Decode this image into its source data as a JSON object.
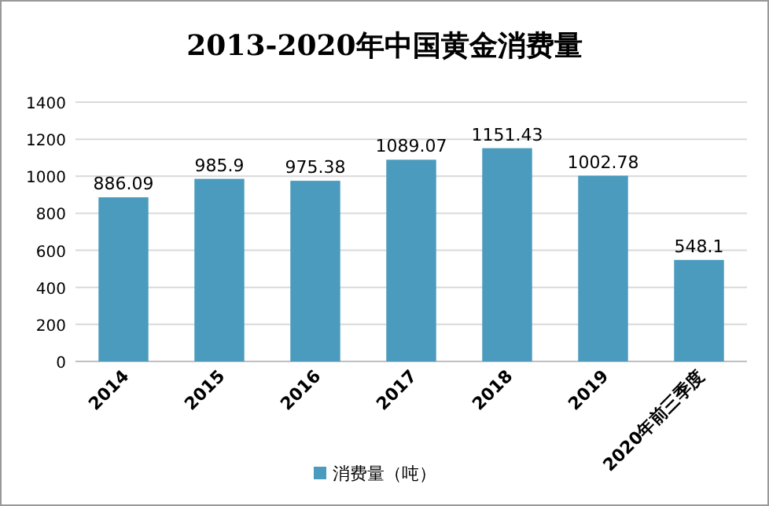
{
  "chart_data": {
    "type": "bar",
    "title": "2013-2020年中国黄金消费量",
    "categories": [
      "2014",
      "2015",
      "2016",
      "2017",
      "2018",
      "2019",
      "2020年前三季度"
    ],
    "series": [
      {
        "name": "消费量（吨）",
        "color": "#4a9bbd",
        "values": [
          886.09,
          985.9,
          975.38,
          1089.07,
          1151.43,
          1002.78,
          548.1
        ]
      }
    ],
    "ylim": [
      0,
      1400
    ],
    "yticks": [
      0,
      200,
      400,
      600,
      800,
      1000,
      1200,
      1400
    ],
    "grid": "y",
    "legend": "bottom",
    "data_labels": true
  }
}
